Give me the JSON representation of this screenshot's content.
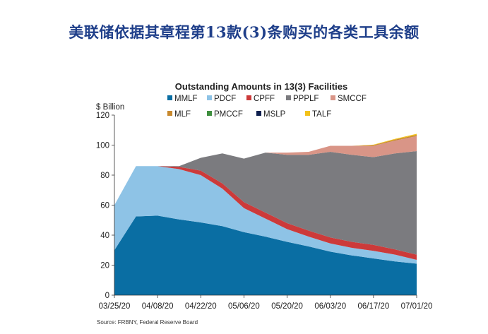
{
  "page": {
    "title": "美联储依据其章程第13款(3)条购买的各类工具余额"
  },
  "chart_data": {
    "type": "area",
    "stacked": true,
    "title": "Outstanding Amounts in 13(3) Facilities",
    "ylabel": "$ Billion",
    "xlabel": "",
    "ylim": [
      0,
      120
    ],
    "yticks": [
      0,
      20,
      40,
      60,
      80,
      100,
      120
    ],
    "x": [
      "03/25/20",
      "04/01/20",
      "04/08/20",
      "04/15/20",
      "04/22/20",
      "04/29/20",
      "05/06/20",
      "05/13/20",
      "05/20/20",
      "05/27/20",
      "06/03/20",
      "06/10/20",
      "06/17/20",
      "06/24/20",
      "07/01/20"
    ],
    "xtick_labels": [
      "03/25/20",
      "04/08/20",
      "04/22/20",
      "05/06/20",
      "05/20/20",
      "06/03/20",
      "06/17/20",
      "07/01/20"
    ],
    "source": "Source: FRBNY, Federal Reserve Board",
    "series": [
      {
        "name": "MMLF",
        "color": "#0a6ea3",
        "values": [
          30,
          52.5,
          53,
          50.5,
          48.5,
          46,
          42,
          39,
          35.5,
          32.5,
          29,
          26.5,
          24.5,
          22.5,
          21
        ]
      },
      {
        "name": "PDCF",
        "color": "#8ec3e6",
        "values": [
          30,
          33.5,
          33,
          33.5,
          31.5,
          25,
          16,
          12,
          8.5,
          6.5,
          5.5,
          5,
          5,
          4.5,
          2.5
        ]
      },
      {
        "name": "CPFF",
        "color": "#cc3a3a",
        "values": [
          0,
          0,
          0,
          1.5,
          3,
          3.5,
          4,
          4,
          4,
          4,
          4,
          4,
          4,
          3.5,
          3.5
        ]
      },
      {
        "name": "PPPLF",
        "color": "#7b7b7f",
        "values": [
          0,
          0,
          0,
          0.5,
          8.5,
          20,
          29,
          40,
          45.5,
          50.5,
          57,
          58,
          58.5,
          64,
          69
        ]
      },
      {
        "name": "SMCCF",
        "color": "#d99587",
        "values": [
          0,
          0,
          0,
          0,
          0,
          0,
          0,
          0,
          1.5,
          2,
          4,
          6,
          7.5,
          8.5,
          10
        ]
      },
      {
        "name": "MLF",
        "color": "#c8892e",
        "values": [
          0,
          0,
          0,
          0,
          0,
          0,
          0,
          0,
          0,
          0,
          0,
          0,
          0.5,
          0.7,
          0.8
        ]
      },
      {
        "name": "PMCCF",
        "color": "#3f8f3f",
        "values": [
          0,
          0,
          0,
          0,
          0,
          0,
          0,
          0,
          0,
          0,
          0,
          0,
          0,
          0,
          0
        ]
      },
      {
        "name": "MSLP",
        "color": "#0e1f4f",
        "values": [
          0,
          0,
          0,
          0,
          0,
          0,
          0,
          0,
          0,
          0,
          0,
          0,
          0,
          0,
          0
        ]
      },
      {
        "name": "TALF",
        "color": "#f2c21b",
        "values": [
          0,
          0,
          0,
          0,
          0,
          0,
          0,
          0,
          0,
          0,
          0,
          0,
          0.3,
          0.5,
          0.7
        ]
      }
    ]
  }
}
